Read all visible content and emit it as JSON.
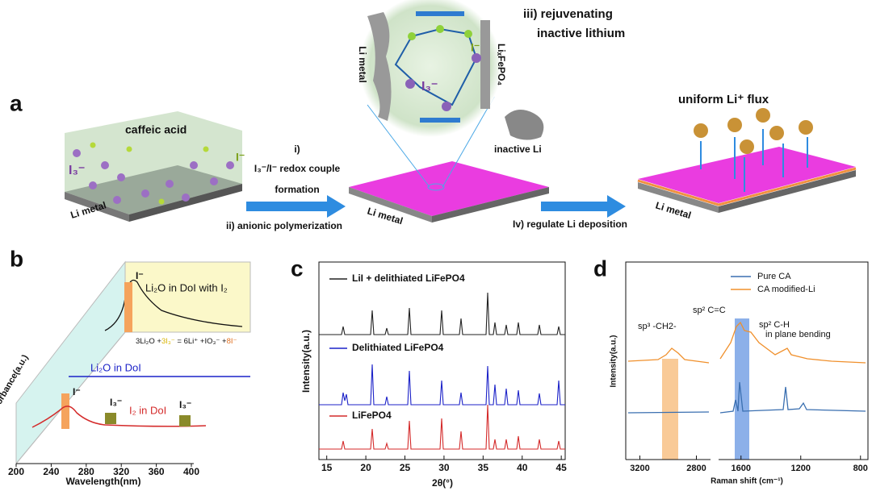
{
  "panel_a": {
    "label": "a",
    "caffeic_acid": "caffeic acid",
    "i3_left": "I₃⁻",
    "i_left": "I⁻",
    "li_metal_1": "Li metal",
    "step_i": "i)",
    "redox": "I₃⁻/I⁻ redox couple",
    "formation": "formation",
    "step_ii": "ii) anionic polymerization",
    "step_iii_1": "iii) rejuvenating",
    "step_iii_2": "inactive lithium",
    "inset_li_metal": "Li metal",
    "inset_lifepo4": "LiₓFePO₄",
    "inset_i": "I⁻",
    "inset_i3": "I₃⁻",
    "inactive_li": "inactive Li",
    "li_metal_2": "Li metal",
    "flux": "uniform Li⁺ flux",
    "step_iv": "Iv) regulate Li deposition",
    "li_metal_3": "Li metal"
  },
  "panel_b": {
    "label": "b",
    "back_title": "Li₂O in DoI with I₂",
    "back_peak": "I⁻",
    "equation": [
      "3Li₂O +",
      "3I₃⁻",
      " = 6Li⁺ +IO₃⁻ +",
      "8I⁻"
    ],
    "middle_title": "Li₂O in DoI",
    "front_title": "I₂ in DoI",
    "front_peak_1": "I⁻",
    "front_peak_2": "I₃⁻",
    "front_peak_3": "I₃⁻",
    "ylabel": "Absorbance(a.u.)",
    "xlabel": "Wavelength(nm)",
    "xlim": [
      200,
      400
    ],
    "xticks": [
      200,
      240,
      280,
      320,
      360,
      400
    ]
  },
  "panel_c": {
    "label": "c",
    "series": [
      {
        "name": "LiI + delithiated LiFePO4",
        "color": "#222222"
      },
      {
        "name": "Delithiated LiFePO4",
        "color": "#1c22c8"
      },
      {
        "name": "LiFePO4",
        "color": "#d42a2a"
      }
    ],
    "ylabel": "Intensity(a.u.)",
    "xlabel": "2θ(°)",
    "xlim": [
      14,
      45.5
    ],
    "xticks": [
      15,
      20,
      25,
      30,
      35,
      40,
      45
    ]
  },
  "panel_d": {
    "label": "d",
    "series": [
      {
        "name": "Pure CA",
        "color": "#3a6fb0"
      },
      {
        "name": "CA modified-Li",
        "color": "#f0902c"
      }
    ],
    "annotation_1": "sp³ -CH2-",
    "annotation_2": "sp² C=C",
    "annotation_3": "sp² C-H",
    "annotation_4": "in plane bending",
    "ylabel": "Intensity(a.u.)",
    "xlabel": "Raman shift (cm⁻¹)",
    "xlim": [
      [
        3300,
        2700
      ],
      [
        1750,
        750
      ]
    ],
    "xticks": [
      3200,
      2800,
      1600,
      1200,
      800
    ]
  }
}
